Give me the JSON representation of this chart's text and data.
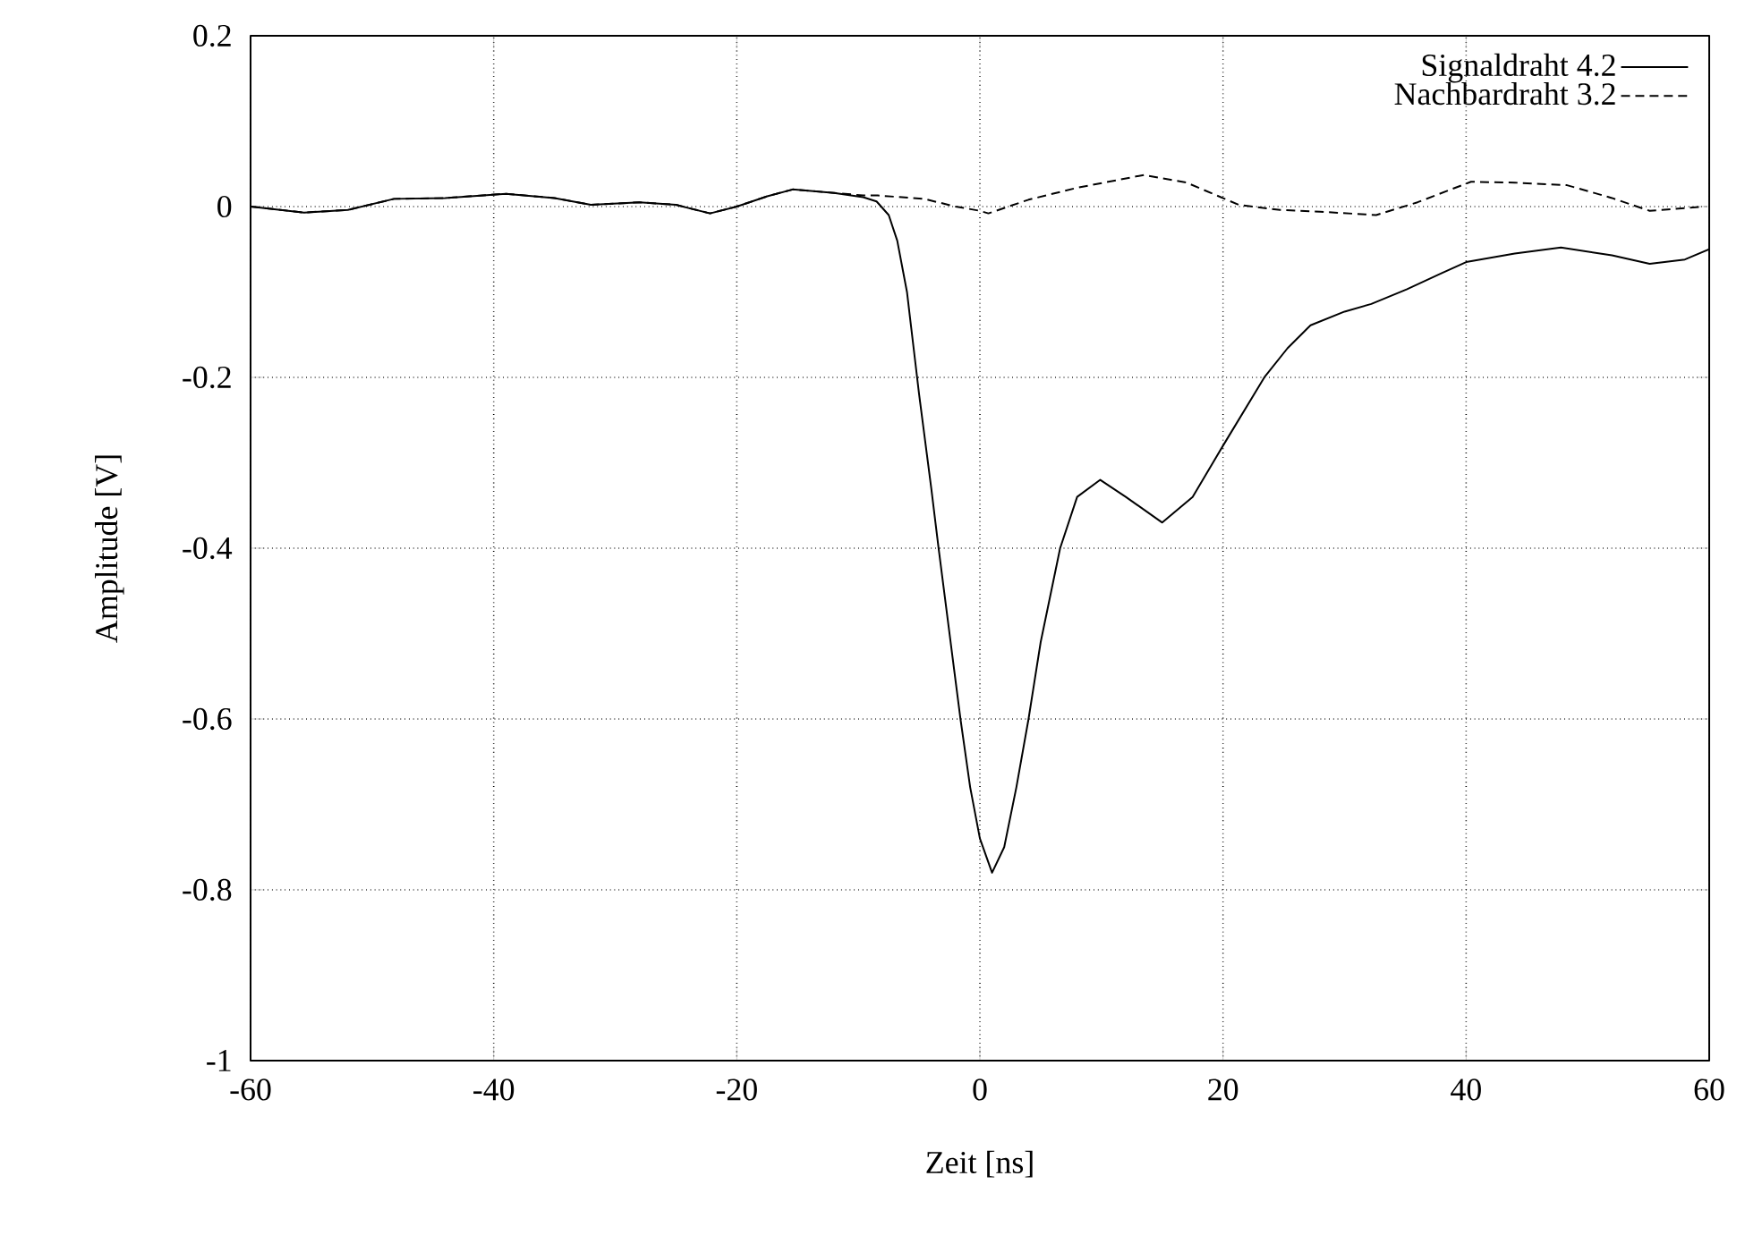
{
  "chart_data": {
    "type": "line",
    "xlabel": "Zeit [ns]",
    "ylabel": "Amplitude [V]",
    "xlim": [
      -60,
      60
    ],
    "ylim": [
      -1,
      0.2
    ],
    "xticks": [
      -60,
      -40,
      -20,
      0,
      20,
      40,
      60
    ],
    "yticks": [
      -1,
      -0.8,
      -0.6,
      -0.4,
      -0.2,
      0,
      0.2
    ],
    "grid": true,
    "legend": "top right",
    "marker": "none",
    "series": [
      {
        "name": "Signaldraht 4.2",
        "color": "#000000",
        "line_style": "solid",
        "x": [
          -60,
          -55.6,
          -52,
          -48.2,
          -44,
          -39,
          -35,
          -32,
          -28,
          -25,
          -22.2,
          -20,
          -17.5,
          -15.4,
          -12,
          -9.6,
          -8.5,
          -7.5,
          -6.8,
          -6,
          -5,
          -4,
          -3.4,
          -2.5,
          -1.6,
          -0.8,
          0,
          1,
          2,
          3,
          4,
          5,
          6.6,
          8,
          9.9,
          12,
          15,
          17.5,
          20,
          23.4,
          25.3,
          27.2,
          30,
          32.2,
          35.1,
          38,
          40,
          44,
          47.8,
          52,
          55.1,
          58,
          60
        ],
        "values": [
          0,
          -0.007,
          -0.004,
          0.009,
          0.01,
          0.015,
          0.01,
          0.002,
          0.005,
          0.002,
          -0.008,
          0,
          0.012,
          0.02,
          0.016,
          0.011,
          0.006,
          -0.01,
          -0.04,
          -0.1,
          -0.22,
          -0.33,
          -0.4,
          -0.5,
          -0.6,
          -0.68,
          -0.74,
          -0.78,
          -0.75,
          -0.68,
          -0.6,
          -0.51,
          -0.4,
          -0.34,
          -0.32,
          -0.34,
          -0.37,
          -0.34,
          -0.28,
          -0.2,
          -0.166,
          -0.139,
          -0.123,
          -0.114,
          -0.097,
          -0.078,
          -0.065,
          -0.055,
          -0.048,
          -0.057,
          -0.067,
          -0.062,
          -0.05
        ]
      },
      {
        "name": "Nachbardraht 3.2",
        "color": "#000000",
        "line_style": "dashed",
        "x": [
          -60,
          -55.6,
          -52,
          -48.2,
          -44,
          -39,
          -35,
          -32,
          -28,
          -25,
          -22.2,
          -20,
          -17.5,
          -15.4,
          -12,
          -9.6,
          -8.4,
          -4.6,
          -2,
          0,
          0.7,
          4,
          8,
          13.5,
          17,
          21.3,
          24.7,
          28,
          32.6,
          36,
          40.4,
          44,
          48.3,
          52,
          55.1,
          59.6
        ],
        "values": [
          0,
          -0.007,
          -0.004,
          0.009,
          0.01,
          0.015,
          0.01,
          0.002,
          0.005,
          0.002,
          -0.008,
          0,
          0.012,
          0.02,
          0.016,
          0.013,
          0.013,
          0.009,
          0.0,
          -0.005,
          -0.008,
          0.008,
          0.022,
          0.037,
          0.028,
          0.002,
          -0.004,
          -0.006,
          -0.01,
          0.005,
          0.029,
          0.028,
          0.025,
          0.01,
          -0.005,
          0
        ]
      }
    ]
  }
}
